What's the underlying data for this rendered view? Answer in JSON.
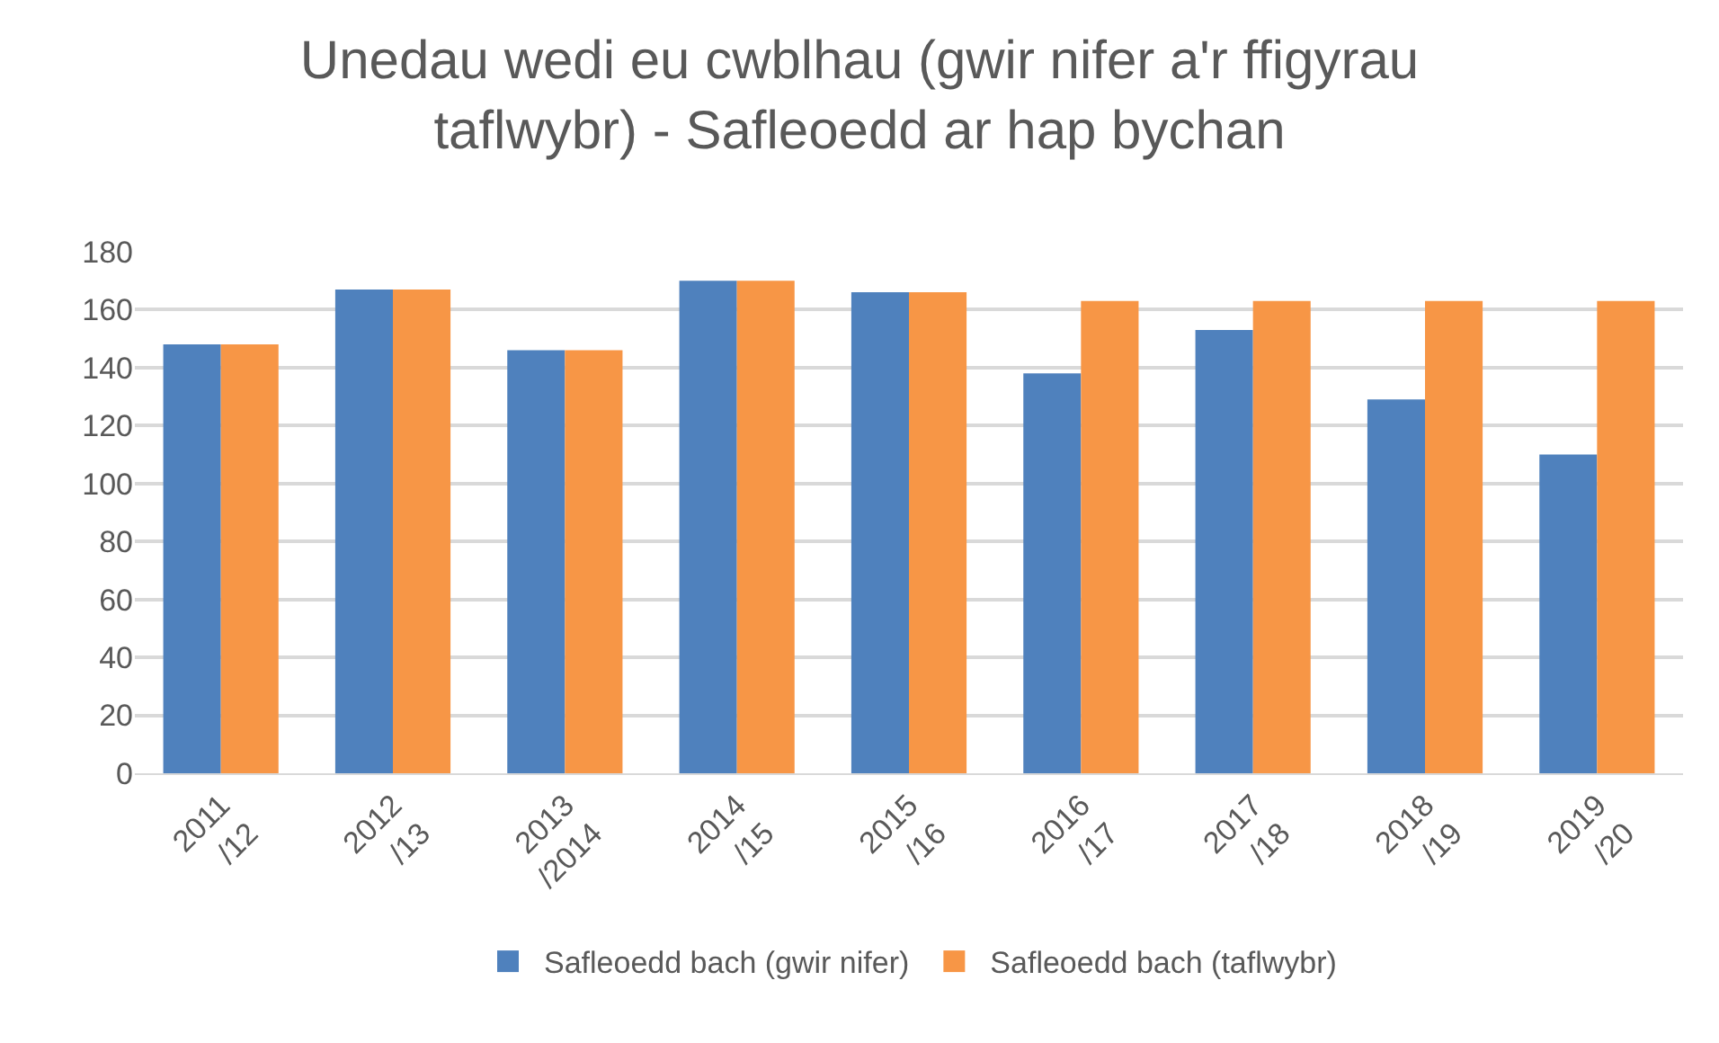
{
  "chart_data": {
    "type": "bar",
    "title": "Unedau wedi eu cwblhau (gwir nifer a'r ffigyrau taflwybr) - Safleoedd ar hap bychan",
    "categories": [
      "2011 /12",
      "2012 /13",
      "2013 /2014",
      "2014 /15",
      "2015 /16",
      "2016 /17",
      "2017 /18",
      "2018 /19",
      "2019 /20"
    ],
    "series": [
      {
        "name": "Safleoedd bach (gwir nifer)",
        "color": "#4f81bd",
        "values": [
          148,
          167,
          146,
          170,
          166,
          138,
          153,
          129,
          110
        ]
      },
      {
        "name": "Safleoedd bach (taflwybr)",
        "color": "#f79646",
        "values": [
          148,
          167,
          146,
          170,
          166,
          163,
          163,
          163,
          163
        ]
      }
    ],
    "ylim": [
      0,
      180
    ],
    "yticks": [
      0,
      20,
      40,
      60,
      80,
      100,
      120,
      140,
      160,
      180
    ],
    "grid": "y",
    "legend": "bottom"
  }
}
